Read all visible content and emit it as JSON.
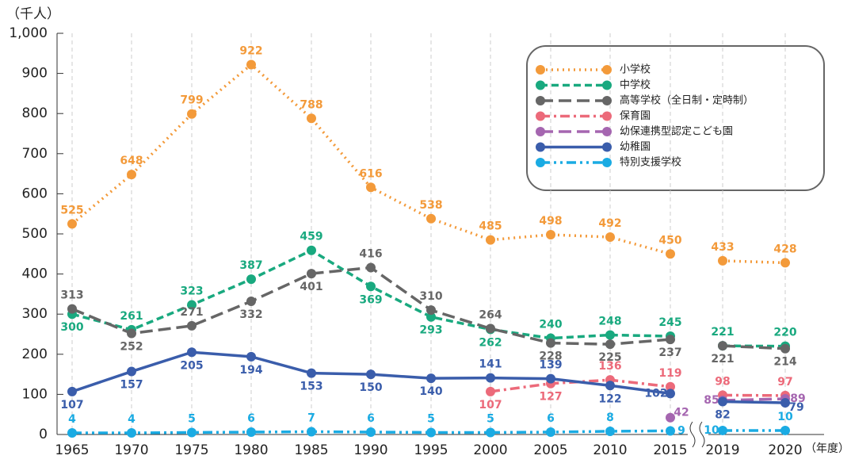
{
  "chart_data": {
    "type": "line",
    "y_label": "（千人）",
    "x_label": "（年度）",
    "categories": [
      "1965",
      "1970",
      "1975",
      "1980",
      "1985",
      "1990",
      "1995",
      "2000",
      "2005",
      "2010",
      "2015",
      "2019",
      "2020"
    ],
    "ylim": [
      0,
      1000
    ],
    "yticks": [
      0,
      100,
      200,
      300,
      400,
      500,
      600,
      700,
      800,
      900,
      {
        "value": 1000,
        "label": "1,000"
      }
    ],
    "grid": "x",
    "legend": "upper right",
    "series": [
      {
        "name": "小学校",
        "color": "#f39a3a",
        "line_style": "dotted",
        "values": [
          525,
          648,
          799,
          922,
          788,
          616,
          538,
          485,
          498,
          492,
          450,
          433,
          428
        ]
      },
      {
        "name": "中学校",
        "color": "#19a97f",
        "line_style": "dashed",
        "values": [
          300,
          261,
          323,
          387,
          459,
          369,
          293,
          262,
          240,
          248,
          245,
          221,
          220
        ]
      },
      {
        "name": "高等学校（全日制・定時制）",
        "color": "#666666",
        "line_style": "longdash",
        "values": [
          313,
          252,
          271,
          332,
          401,
          416,
          310,
          264,
          228,
          225,
          237,
          221,
          214
        ]
      },
      {
        "name": "保育園",
        "color": "#ec6a7a",
        "line_style": "dashdot",
        "values": [
          null,
          null,
          null,
          null,
          null,
          null,
          null,
          107,
          127,
          136,
          119,
          98,
          97
        ]
      },
      {
        "name": "幼保連携型認定こども園",
        "color": "#a566b0",
        "line_style": "longdash",
        "values": [
          null,
          null,
          null,
          null,
          null,
          null,
          null,
          null,
          null,
          null,
          42,
          85,
          89
        ]
      },
      {
        "name": "幼稚園",
        "color": "#3a5dab",
        "line_style": "solid",
        "values": [
          107,
          157,
          205,
          194,
          153,
          150,
          140,
          141,
          139,
          122,
          102,
          82,
          79
        ]
      },
      {
        "name": "特別支援学校",
        "color": "#1aabe3",
        "line_style": "dashdotdot",
        "values": [
          4,
          4,
          5,
          6,
          7,
          6,
          5,
          5,
          6,
          8,
          9,
          10,
          10
        ]
      }
    ]
  }
}
